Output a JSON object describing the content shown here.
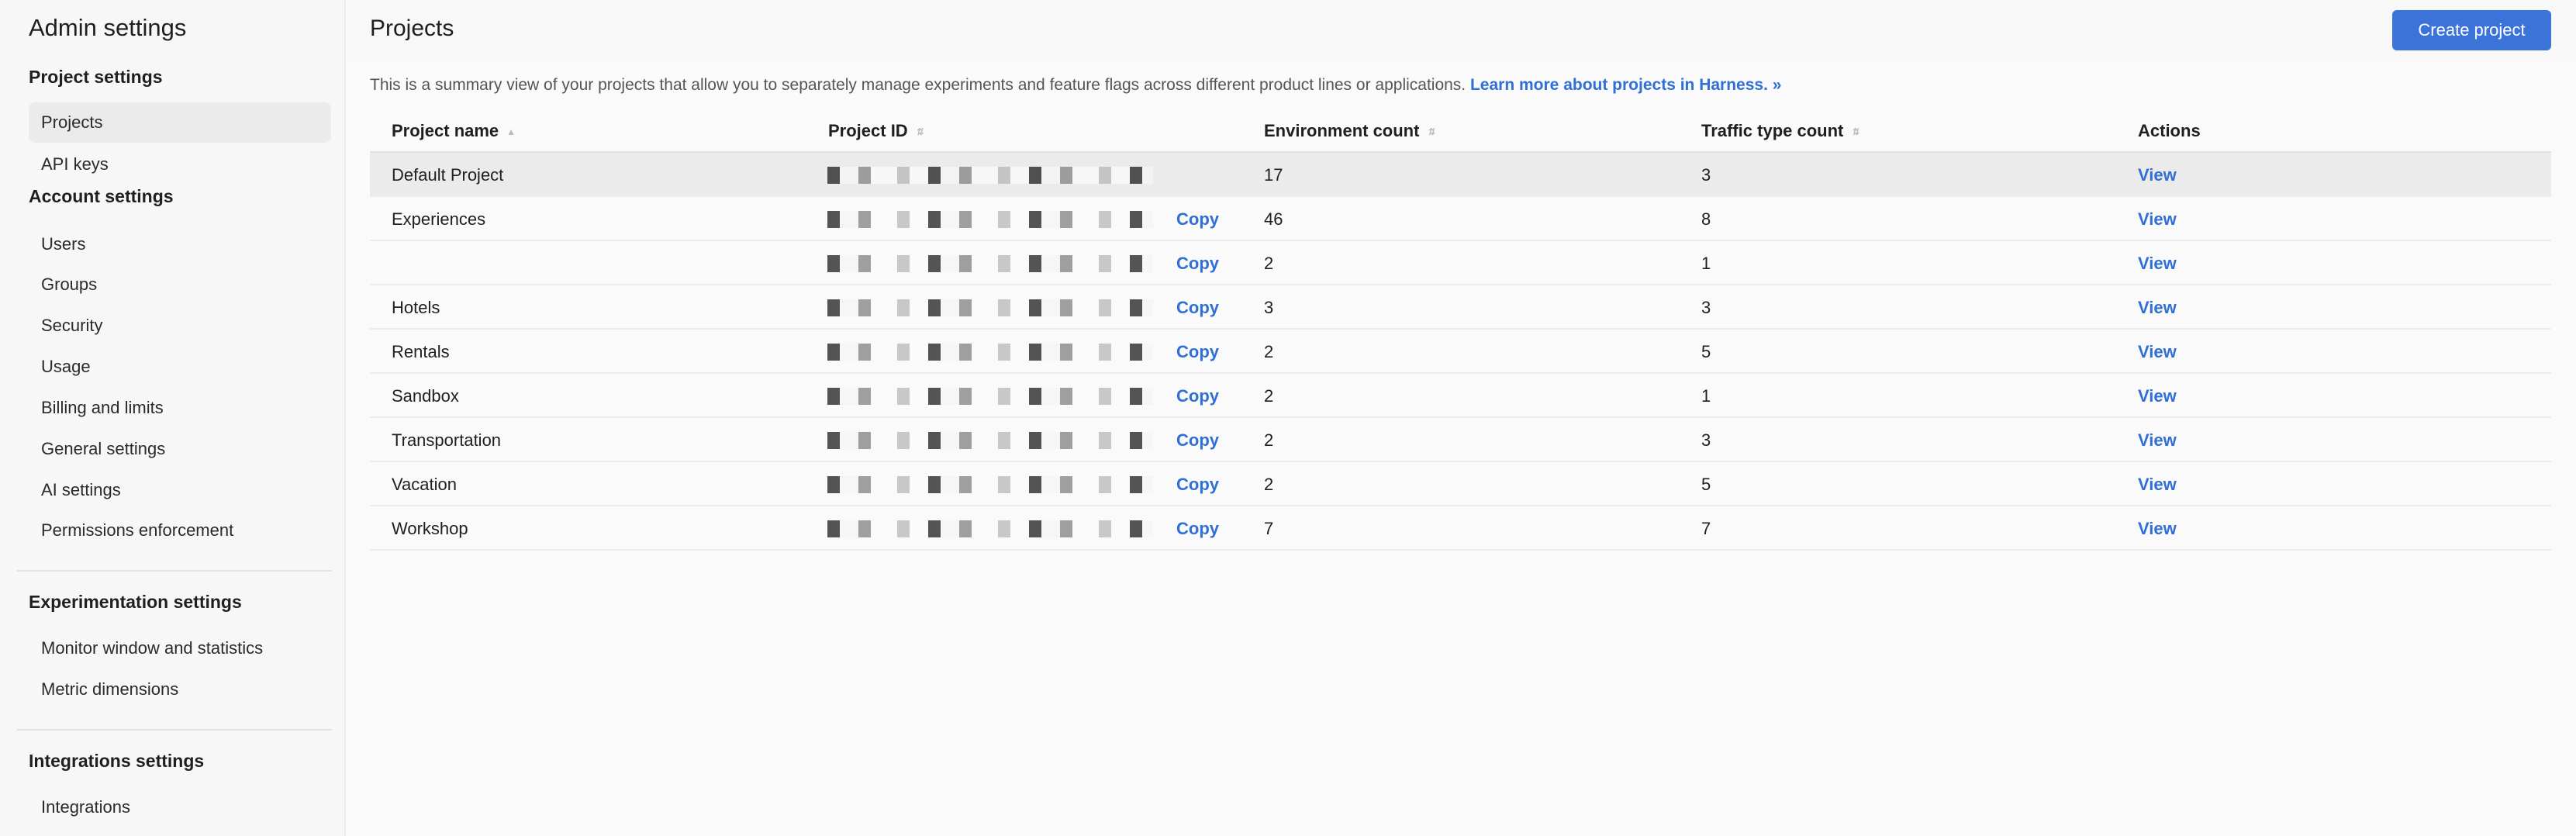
{
  "sidebar": {
    "title": "Admin settings",
    "sections": [
      {
        "label": "Project settings",
        "items": [
          "Projects",
          "API keys"
        ]
      },
      {
        "label": "Account settings",
        "items": [
          "Users",
          "Groups",
          "Security",
          "Usage",
          "Billing and limits",
          "General settings",
          "AI settings",
          "Permissions enforcement"
        ]
      },
      {
        "label": "Experimentation settings",
        "items": [
          "Monitor window and statistics",
          "Metric dimensions"
        ]
      },
      {
        "label": "Integrations settings",
        "items": [
          "Integrations"
        ]
      }
    ],
    "active": "Projects"
  },
  "header": {
    "title": "Projects",
    "create_label": "Create project"
  },
  "description": {
    "text": "This is a summary view of your projects that allow you to separately manage experiments and feature flags across different product lines or applications. ",
    "link": "Learn more about projects in Harness. »"
  },
  "table": {
    "columns": [
      "Project name",
      "Project ID",
      "Environment count",
      "Traffic type count",
      "Actions"
    ],
    "rows": [
      {
        "name": "Default Project",
        "env": "17",
        "traffic": "3",
        "action": "View",
        "copy": ""
      },
      {
        "name": "Experiences",
        "env": "46",
        "traffic": "8",
        "action": "View",
        "copy": "Copy"
      },
      {
        "name": "",
        "env": "2",
        "traffic": "1",
        "action": "View",
        "copy": "Copy"
      },
      {
        "name": "Hotels",
        "env": "3",
        "traffic": "3",
        "action": "View",
        "copy": "Copy"
      },
      {
        "name": "Rentals",
        "env": "2",
        "traffic": "5",
        "action": "View",
        "copy": "Copy"
      },
      {
        "name": "Sandbox",
        "env": "2",
        "traffic": "1",
        "action": "View",
        "copy": "Copy"
      },
      {
        "name": "Transportation",
        "env": "2",
        "traffic": "3",
        "action": "View",
        "copy": "Copy"
      },
      {
        "name": "Vacation",
        "env": "2",
        "traffic": "5",
        "action": "View",
        "copy": "Copy"
      },
      {
        "name": "Workshop",
        "env": "7",
        "traffic": "7",
        "action": "View",
        "copy": "Copy"
      }
    ]
  },
  "colors": {
    "accent": "#3b73d9",
    "link": "#2f6fd6"
  }
}
